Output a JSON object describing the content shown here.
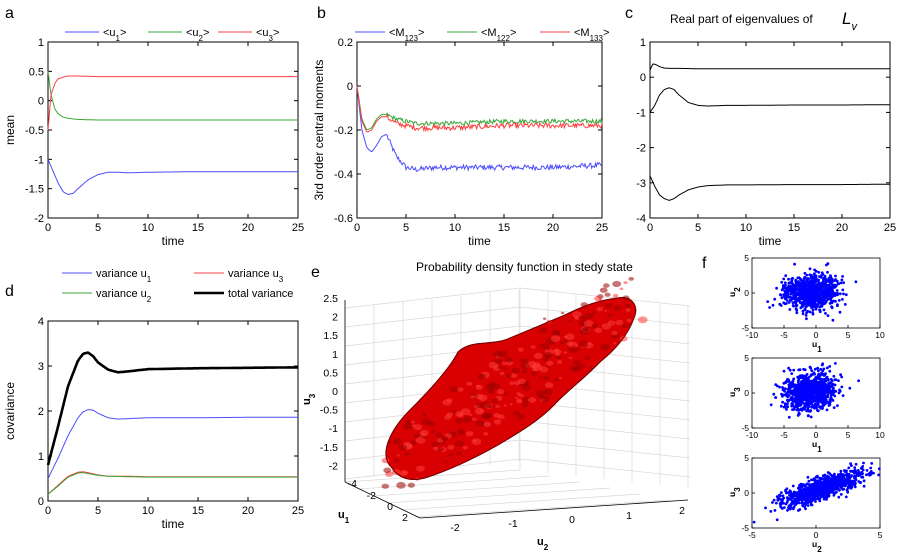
{
  "colors": {
    "blue": "#4d4dff",
    "green": "#3aa63a",
    "red": "#ff4040",
    "black": "#000000",
    "blob": "#d80000",
    "scatter": "#0000ff"
  },
  "chart_data": [
    {
      "panel": "a",
      "type": "line",
      "title": "",
      "xlabel": "time",
      "ylabel": "mean",
      "xlim": [
        0,
        25
      ],
      "ylim": [
        -2,
        1
      ],
      "xticks": [
        0,
        5,
        10,
        15,
        20,
        25
      ],
      "yticks": [
        -2,
        -1.5,
        -1,
        -0.5,
        0,
        0.5,
        1
      ],
      "legend": {
        "placement": "top",
        "entries": [
          {
            "base": "<u",
            "sub": "1",
            "tail": ">"
          },
          {
            "base": "<u",
            "sub": "2",
            "tail": ">"
          },
          {
            "base": "<u",
            "sub": "3",
            "tail": ">"
          }
        ]
      },
      "series": [
        {
          "name": "<u1>",
          "color": "blue",
          "x": [
            0,
            0.5,
            1,
            1.5,
            2,
            2.5,
            3,
            4,
            5,
            6,
            7,
            8,
            10,
            15,
            20,
            25
          ],
          "y": [
            -1,
            -1.2,
            -1.4,
            -1.55,
            -1.6,
            -1.58,
            -1.5,
            -1.35,
            -1.26,
            -1.22,
            -1.22,
            -1.23,
            -1.22,
            -1.21,
            -1.21,
            -1.21
          ]
        },
        {
          "name": "<u2>",
          "color": "green",
          "x": [
            0,
            0.3,
            0.7,
            1,
            1.5,
            2,
            3,
            5,
            10,
            15,
            20,
            25
          ],
          "y": [
            0.5,
            0.1,
            -0.15,
            -0.22,
            -0.28,
            -0.3,
            -0.32,
            -0.33,
            -0.33,
            -0.33,
            -0.33,
            -0.33
          ]
        },
        {
          "name": "<u3>",
          "color": "red",
          "x": [
            0,
            0.3,
            0.7,
            1,
            1.5,
            2,
            3,
            5,
            10,
            15,
            20,
            25
          ],
          "y": [
            -0.5,
            0.1,
            0.3,
            0.37,
            0.4,
            0.42,
            0.42,
            0.41,
            0.41,
            0.41,
            0.41,
            0.41
          ]
        }
      ]
    },
    {
      "panel": "b",
      "type": "line",
      "title": "",
      "xlabel": "time",
      "ylabel": "3rd order central moments",
      "xlim": [
        0,
        25
      ],
      "ylim": [
        -0.6,
        0.2
      ],
      "xticks": [
        0,
        5,
        10,
        15,
        20,
        25
      ],
      "yticks": [
        -0.6,
        -0.4,
        -0.2,
        0,
        0.2
      ],
      "legend": {
        "placement": "top",
        "entries": [
          {
            "base": "<M",
            "sub": "123",
            "tail": ">"
          },
          {
            "base": "<M",
            "sub": "122",
            "tail": ">"
          },
          {
            "base": "<M",
            "sub": "133",
            "tail": ">"
          }
        ]
      },
      "series": [
        {
          "name": "<M123>",
          "color": "blue",
          "noise": 0.012,
          "x": [
            0,
            0.5,
            1,
            1.5,
            2,
            2.5,
            3,
            3.5,
            4,
            5,
            6,
            8,
            10,
            15,
            20,
            25
          ],
          "y": [
            0,
            -0.2,
            -0.28,
            -0.3,
            -0.27,
            -0.23,
            -0.22,
            -0.27,
            -0.32,
            -0.37,
            -0.38,
            -0.37,
            -0.37,
            -0.37,
            -0.37,
            -0.36
          ]
        },
        {
          "name": "<M122>",
          "color": "green",
          "noise": 0.01,
          "x": [
            0,
            0.5,
            1,
            1.5,
            2,
            2.5,
            3,
            4,
            5,
            6,
            8,
            10,
            15,
            20,
            25
          ],
          "y": [
            0,
            -0.15,
            -0.2,
            -0.19,
            -0.15,
            -0.13,
            -0.13,
            -0.15,
            -0.16,
            -0.17,
            -0.17,
            -0.17,
            -0.16,
            -0.16,
            -0.16
          ]
        },
        {
          "name": "<M133>",
          "color": "red",
          "noise": 0.012,
          "x": [
            0,
            0.5,
            1,
            1.5,
            2,
            2.5,
            3,
            4,
            5,
            6,
            8,
            10,
            15,
            20,
            25
          ],
          "y": [
            0,
            -0.16,
            -0.21,
            -0.2,
            -0.16,
            -0.14,
            -0.14,
            -0.17,
            -0.18,
            -0.19,
            -0.19,
            -0.19,
            -0.18,
            -0.18,
            -0.18
          ]
        }
      ]
    },
    {
      "panel": "c",
      "type": "line",
      "title": "Real part of eigenvalues of",
      "title_math": "L",
      "title_math_sub": "v",
      "xlabel": "time",
      "ylabel": "",
      "xlim": [
        0,
        25
      ],
      "ylim": [
        -4,
        1
      ],
      "xticks": [
        0,
        5,
        10,
        15,
        20,
        25
      ],
      "yticks": [
        -4,
        -3,
        -2,
        -1,
        0,
        1
      ],
      "series": [
        {
          "color": "black",
          "x": [
            0,
            0.3,
            0.6,
            1,
            1.5,
            2,
            3,
            5,
            10,
            15,
            20,
            25
          ],
          "y": [
            0.2,
            0.38,
            0.36,
            0.3,
            0.26,
            0.25,
            0.25,
            0.24,
            0.24,
            0.24,
            0.24,
            0.24
          ]
        },
        {
          "color": "black",
          "x": [
            0,
            0.5,
            1,
            1.5,
            2,
            2.5,
            3,
            4,
            5,
            6,
            8,
            10,
            15,
            20,
            25
          ],
          "y": [
            -1,
            -0.8,
            -0.5,
            -0.35,
            -0.3,
            -0.35,
            -0.5,
            -0.72,
            -0.8,
            -0.82,
            -0.8,
            -0.8,
            -0.79,
            -0.79,
            -0.78
          ]
        },
        {
          "color": "black",
          "x": [
            0,
            0.5,
            1,
            1.5,
            2,
            2.5,
            3,
            4,
            5,
            6,
            8,
            10,
            15,
            20,
            25
          ],
          "y": [
            -2.8,
            -3.1,
            -3.35,
            -3.45,
            -3.5,
            -3.45,
            -3.35,
            -3.2,
            -3.12,
            -3.08,
            -3.06,
            -3.06,
            -3.05,
            -3.05,
            -3.04
          ]
        }
      ]
    },
    {
      "panel": "d",
      "type": "line",
      "title": "",
      "xlabel": "time",
      "ylabel": "covariance",
      "xlim": [
        0,
        25
      ],
      "ylim": [
        0,
        4
      ],
      "xticks": [
        0,
        5,
        10,
        15,
        20,
        25
      ],
      "yticks": [
        0,
        1,
        2,
        3,
        4
      ],
      "legend": {
        "placement": "top",
        "entries": [
          {
            "base": "variance u",
            "sub": "1",
            "tail": ""
          },
          {
            "base": "variance u",
            "sub": "3",
            "tail": ""
          },
          {
            "base": "variance u",
            "sub": "2",
            "tail": ""
          },
          {
            "base": "total variance",
            "sub": "",
            "tail": ""
          }
        ]
      },
      "series": [
        {
          "name": "variance u1",
          "color": "blue",
          "x": [
            0,
            1,
            2,
            3,
            3.5,
            4,
            4.5,
            5,
            6,
            7,
            8,
            10,
            15,
            20,
            25
          ],
          "y": [
            0.5,
            0.95,
            1.45,
            1.85,
            1.98,
            2.03,
            2.02,
            1.95,
            1.85,
            1.82,
            1.83,
            1.85,
            1.85,
            1.86,
            1.86
          ]
        },
        {
          "name": "variance u3",
          "color": "red",
          "x": [
            0,
            1,
            2,
            3,
            3.5,
            4,
            5,
            6,
            8,
            10,
            15,
            20,
            25
          ],
          "y": [
            0.15,
            0.35,
            0.55,
            0.64,
            0.65,
            0.63,
            0.58,
            0.55,
            0.55,
            0.54,
            0.54,
            0.54,
            0.54
          ]
        },
        {
          "name": "variance u2",
          "color": "green",
          "x": [
            0,
            1,
            2,
            3,
            3.5,
            4,
            5,
            6,
            8,
            10,
            15,
            20,
            25
          ],
          "y": [
            0.15,
            0.33,
            0.53,
            0.62,
            0.63,
            0.61,
            0.57,
            0.55,
            0.54,
            0.53,
            0.53,
            0.53,
            0.53
          ]
        },
        {
          "name": "total variance",
          "color": "black",
          "width": 2.6,
          "x": [
            0,
            1,
            2,
            3,
            3.5,
            4,
            4.5,
            5,
            6,
            7,
            8,
            10,
            15,
            20,
            25
          ],
          "y": [
            0.8,
            1.65,
            2.55,
            3.12,
            3.27,
            3.3,
            3.22,
            3.08,
            2.92,
            2.86,
            2.88,
            2.93,
            2.95,
            2.96,
            2.97
          ]
        }
      ]
    },
    {
      "panel": "e",
      "type": "isosurface-3d",
      "title": "Probability density function in stedy state",
      "zlabel": {
        "base": "u",
        "sub": "3"
      },
      "xlabel": {
        "base": "u",
        "sub": "1"
      },
      "ylabel": {
        "base": "u",
        "sub": "2"
      },
      "zticks": [
        "2.5",
        "2",
        "1.5",
        "1",
        "0.5",
        "0",
        "-0.5",
        "-1",
        "-1.5",
        "-2"
      ],
      "xticks": [
        "-4",
        "-2",
        "0",
        "2"
      ],
      "yticks": [
        "-2",
        "-1",
        "0",
        "1",
        "2"
      ]
    },
    {
      "panel": "f1",
      "type": "scatter",
      "xlabel": {
        "base": "u",
        "sub": "1"
      },
      "ylabel": {
        "base": "u",
        "sub": "2"
      },
      "xlim": [
        -10,
        10
      ],
      "ylim": [
        -5,
        5
      ],
      "xticks": [
        -10,
        -5,
        0,
        5,
        10
      ],
      "yticks": [
        -5,
        0,
        5
      ],
      "cloud": {
        "cx": -0.8,
        "cy": 0.1,
        "sx": 2.0,
        "sy": 1.2,
        "rho": 0.0
      }
    },
    {
      "panel": "f2",
      "type": "scatter",
      "xlabel": {
        "base": "u",
        "sub": "1"
      },
      "ylabel": {
        "base": "u",
        "sub": "3"
      },
      "xlim": [
        -10,
        10
      ],
      "ylim": [
        -5,
        5
      ],
      "xticks": [
        -10,
        -5,
        0,
        5,
        10
      ],
      "yticks": [
        -5,
        0,
        5
      ],
      "cloud": {
        "cx": -1.0,
        "cy": 0.2,
        "sx": 2.0,
        "sy": 1.3,
        "rho": 0.1
      }
    },
    {
      "panel": "f3",
      "type": "scatter",
      "xlabel": {
        "base": "u",
        "sub": "2"
      },
      "ylabel": {
        "base": "u",
        "sub": "3"
      },
      "xlim": [
        -5,
        5
      ],
      "ylim": [
        -5,
        5
      ],
      "xticks": [
        -5,
        0,
        5
      ],
      "yticks": [
        -5,
        0,
        5
      ],
      "cloud": {
        "cx": 0.6,
        "cy": 0.7,
        "sx": 1.6,
        "sy": 1.3,
        "rho": 0.8
      }
    }
  ],
  "panel_letters": [
    "a",
    "b",
    "c",
    "d",
    "e",
    "f"
  ]
}
